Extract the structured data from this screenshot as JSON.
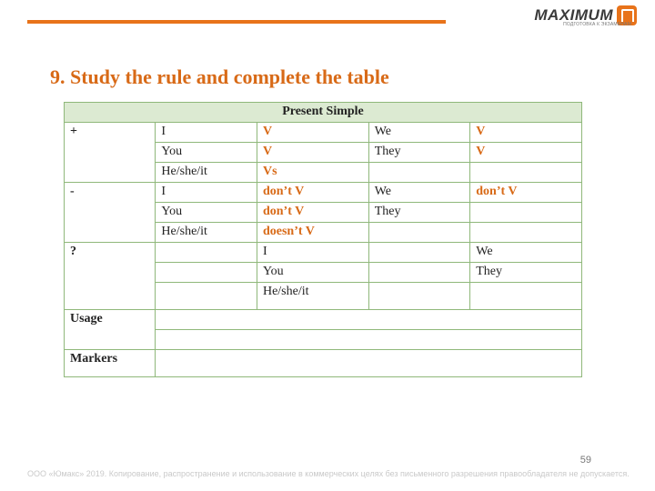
{
  "logo": {
    "text": "MAXIMUM",
    "sub": "ПОДГОТОВКА К ЭКЗАМЕНАМ"
  },
  "heading": "9. Study the rule and complete the table",
  "table": {
    "title": "Present Simple",
    "rows": [
      {
        "sign": "+",
        "p1": "I",
        "v1": "V",
        "p2": "We",
        "v2": "V",
        "v1_orange": true,
        "v2_orange": true
      },
      {
        "sign": "",
        "p1": "You",
        "v1": "V",
        "p2": "They",
        "v2": "V",
        "v1_orange": true,
        "v2_orange": true
      },
      {
        "sign": "",
        "p1": "He/she/it",
        "v1": "Vs",
        "p2": "",
        "v2": "",
        "v1_orange": true,
        "v2_orange": false
      },
      {
        "sign": "-",
        "p1": "I",
        "v1": "don’t V",
        "p2": "We",
        "v2": "don’t V",
        "v1_orange": true,
        "v2_orange": true
      },
      {
        "sign": "",
        "p1": "You",
        "v1": "don’t V",
        "p2": "They",
        "v2": "",
        "v1_orange": true,
        "v2_orange": false
      },
      {
        "sign": "",
        "p1": "He/she/it",
        "v1": "doesn’t V",
        "p2": "",
        "v2": "",
        "v1_orange": true,
        "v2_orange": false
      },
      {
        "sign": "?",
        "p1": "",
        "v1": "I",
        "p2": "",
        "v2": "We",
        "v1_orange": false,
        "v2_orange": false
      },
      {
        "sign": "",
        "p1": "",
        "v1": "You",
        "p2": "",
        "v2": "They",
        "v1_orange": false,
        "v2_orange": false
      },
      {
        "sign": "",
        "p1": "",
        "v1": "He/she/it",
        "p2": "",
        "v2": "",
        "v1_orange": false,
        "v2_orange": false,
        "tall": true
      }
    ],
    "usage_label": "Usage",
    "markers_label": "Markers"
  },
  "page_num": "59",
  "footer": "ООО «Юмакс» 2019. Копирование, распространение и использование в коммерческих целях без письменного разрешения правообладателя не допускается."
}
